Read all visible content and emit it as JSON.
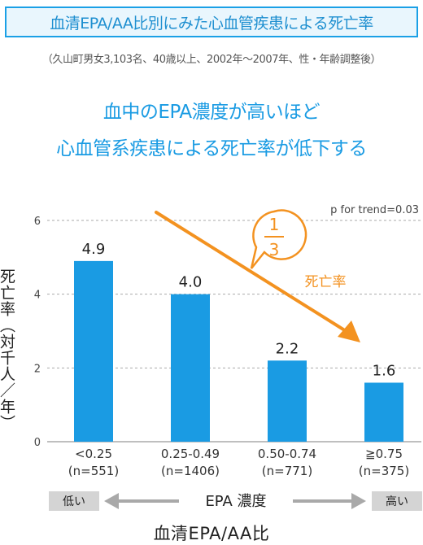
{
  "title": "血清EPA/AA比別にみた心血管疾患による死亡率",
  "subtitle": "（久山町男女3,103名、40歳以上、2002年〜2007年、性・年齢調整後）",
  "headline": [
    "血中のEPA濃度が高いほど",
    "心血管系疾患による死亡率が低下する"
  ],
  "colors": {
    "bar": "#1a9be3",
    "accent": "#f39220",
    "title_border": "#1aa0e6",
    "title_bg": "#e9f6fd"
  },
  "chart_data": {
    "type": "bar",
    "categories": [
      "<0.25",
      "0.25-0.49",
      "0.50-0.74",
      "≧0.75"
    ],
    "category_n": [
      "(n=551)",
      "(n=1406)",
      "(n=771)",
      "(n=375)"
    ],
    "values": [
      4.9,
      4.0,
      2.2,
      1.6
    ],
    "value_labels": [
      "4.9",
      "4.0",
      "2.2",
      "1.6"
    ],
    "ylabel": "死亡率（対千人／年）",
    "xlabel": "血清EPA/AA比",
    "ylim": [
      0,
      6
    ],
    "yticks": [
      "0",
      "2",
      "4",
      "6"
    ],
    "grid": true,
    "p_trend": "p for trend=0.03",
    "trend_label": "死亡率",
    "bubble": {
      "numerator": "1",
      "denominator": "3"
    }
  },
  "axis_scale": {
    "low_tag": "低い",
    "label": "EPA 濃度",
    "high_tag": "高い"
  }
}
